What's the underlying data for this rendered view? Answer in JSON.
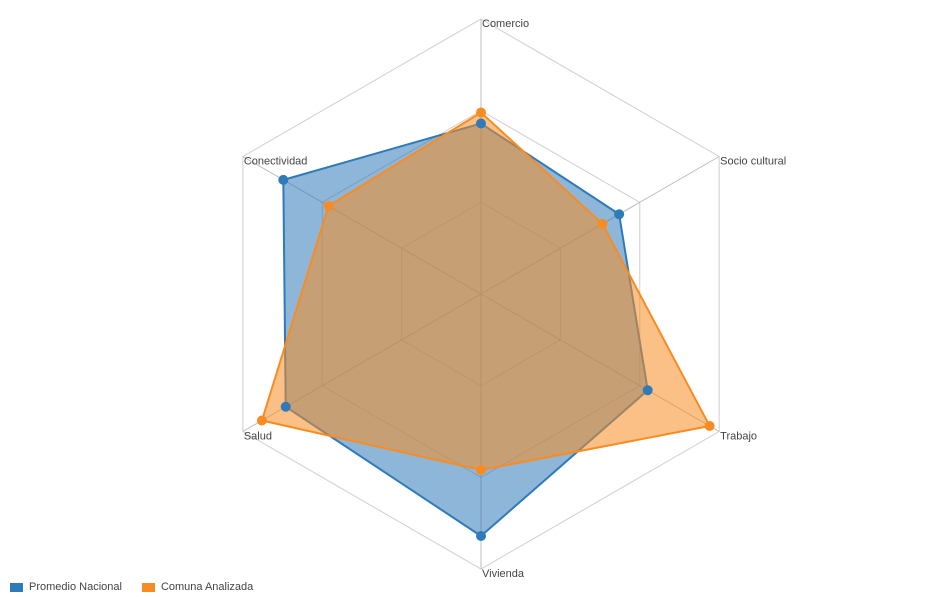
{
  "chart_data": {
    "type": "radar",
    "axes": [
      "Comercio",
      "Socio cultural",
      "Trabajo",
      "Vivienda",
      "Salud",
      "Conectividad"
    ],
    "range": [
      0,
      1
    ],
    "grid_levels": 3,
    "grid": true,
    "legend_position": "bottom-left",
    "series": [
      {
        "name": "Promedio Nacional",
        "color": "#2f7ab9",
        "values": [
          0.62,
          0.58,
          0.7,
          0.88,
          0.82,
          0.83
        ]
      },
      {
        "name": "Comuna Analizada",
        "color": "#f88c22",
        "values": [
          0.66,
          0.51,
          0.96,
          0.64,
          0.92,
          0.64
        ]
      }
    ]
  }
}
